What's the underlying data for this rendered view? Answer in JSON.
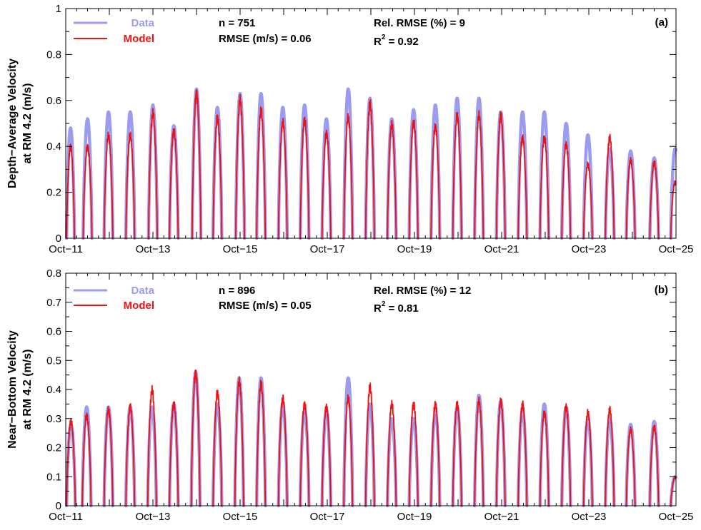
{
  "chart_data": [
    {
      "type": "line",
      "panel_label": "(a)",
      "ylabel_line1": "Depth−Average Velocity",
      "ylabel_line2": "at RM 4.2 (m/s)",
      "ylim": [
        0,
        1
      ],
      "yticks": [
        "0",
        "0.2",
        "0.4",
        "0.6",
        "0.8",
        "1"
      ],
      "xlim": [
        "Oct-11",
        "Oct-25"
      ],
      "xticks": [
        "Oct−11",
        "Oct−13",
        "Oct−15",
        "Oct−17",
        "Oct−19",
        "Oct−21",
        "Oct−23",
        "Oct−25"
      ],
      "stats": {
        "n": "n =  751",
        "rmse": "RMSE (m/s) = 0.06",
        "rel_rmse": "Rel. RMSE (%) = 9",
        "r2_prefix": "R",
        "r2_exp": "2",
        "r2_value": " =  0.92"
      },
      "legend": {
        "data_label": "Data",
        "model_label": "Model",
        "position": "top-left"
      },
      "series": [
        {
          "name": "Data",
          "color": "#9b9bf0",
          "pulses": [
            [
              0.4,
              0.02,
              0.48,
              0.18
            ],
            [
              1.5,
              0.4,
              0.52,
              0.2
            ],
            [
              2.0,
              0.88,
              0.55,
              0.2
            ],
            [
              2.5,
              1.38,
              0.55,
              0.2
            ],
            [
              3.0,
              1.9,
              0.58,
              0.2
            ],
            [
              3.5,
              2.38,
              0.49,
              0.2
            ],
            [
              4.0,
              2.9,
              0.65,
              0.2
            ],
            [
              4.5,
              3.38,
              0.57,
              0.2
            ],
            [
              5.0,
              3.9,
              0.63,
              0.2
            ],
            [
              5.5,
              4.38,
              0.63,
              0.2
            ],
            [
              6.0,
              4.88,
              0.57,
              0.2
            ],
            [
              6.5,
              5.38,
              0.58,
              0.2
            ],
            [
              7.0,
              5.88,
              0.52,
              0.2
            ],
            [
              7.5,
              6.38,
              0.65,
              0.2
            ],
            [
              8.0,
              6.88,
              0.61,
              0.2
            ],
            [
              8.5,
              7.38,
              0.52,
              0.2
            ],
            [
              9.0,
              7.88,
              0.56,
              0.2
            ],
            [
              9.5,
              8.38,
              0.58,
              0.2
            ],
            [
              10.0,
              8.88,
              0.61,
              0.2
            ],
            [
              10.5,
              9.38,
              0.61,
              0.2
            ],
            [
              11.0,
              9.88,
              0.55,
              0.2
            ],
            [
              11.5,
              10.38,
              0.55,
              0.2
            ],
            [
              12.0,
              10.88,
              0.55,
              0.2
            ],
            [
              12.5,
              11.38,
              0.5,
              0.2
            ],
            [
              13.0,
              11.88,
              0.45,
              0.2
            ],
            [
              13.5,
              12.38,
              0.39,
              0.2
            ],
            [
              14.0,
              12.86,
              0.38,
              0.2
            ],
            [
              14.5,
              13.4,
              0.35,
              0.2
            ],
            [
              15.0,
              13.88,
              0.39,
              0.2
            ]
          ]
        },
        {
          "name": "Model",
          "color": "#ee1111",
          "pulses": [
            [
              0.4,
              0.02,
              0.41,
              0.18
            ],
            [
              1.5,
              0.4,
              0.41,
              0.2
            ],
            [
              2.0,
              0.88,
              0.46,
              0.2
            ],
            [
              2.5,
              1.38,
              0.46,
              0.2
            ],
            [
              3.0,
              1.9,
              0.56,
              0.2
            ],
            [
              3.5,
              2.38,
              0.48,
              0.2
            ],
            [
              4.0,
              2.9,
              0.65,
              0.2
            ],
            [
              4.5,
              3.38,
              0.54,
              0.2
            ],
            [
              5.0,
              3.9,
              0.62,
              0.2
            ],
            [
              5.5,
              4.38,
              0.57,
              0.2
            ],
            [
              6.0,
              4.88,
              0.52,
              0.2
            ],
            [
              6.5,
              5.38,
              0.53,
              0.2
            ],
            [
              7.0,
              5.88,
              0.47,
              0.2
            ],
            [
              7.5,
              6.38,
              0.54,
              0.2
            ],
            [
              8.0,
              6.88,
              0.6,
              0.2
            ],
            [
              8.5,
              7.38,
              0.51,
              0.2
            ],
            [
              9.0,
              7.88,
              0.52,
              0.2
            ],
            [
              9.5,
              8.38,
              0.5,
              0.2
            ],
            [
              10.0,
              8.88,
              0.55,
              0.2
            ],
            [
              10.5,
              9.38,
              0.55,
              0.2
            ],
            [
              11.0,
              9.88,
              0.55,
              0.2
            ],
            [
              11.5,
              10.38,
              0.45,
              0.2
            ],
            [
              12.0,
              10.88,
              0.45,
              0.2
            ],
            [
              12.5,
              11.38,
              0.42,
              0.2
            ],
            [
              13.0,
              11.88,
              0.33,
              0.2
            ],
            [
              13.5,
              12.38,
              0.45,
              0.2
            ],
            [
              14.0,
              12.86,
              0.35,
              0.2
            ],
            [
              14.5,
              13.4,
              0.34,
              0.2
            ],
            [
              15.0,
              13.88,
              0.25,
              0.2
            ]
          ]
        }
      ]
    },
    {
      "type": "line",
      "panel_label": "(b)",
      "ylabel_line1": "Near−Bottom Velocity",
      "ylabel_line2": "at RM 4.2 (m/s)",
      "ylim": [
        0,
        0.8
      ],
      "yticks": [
        "0",
        "0.1",
        "0.2",
        "0.3",
        "0.4",
        "0.5",
        "0.6",
        "0.7",
        "0.8"
      ],
      "xlim": [
        "Oct-11",
        "Oct-25"
      ],
      "xticks": [
        "Oct−11",
        "Oct−13",
        "Oct−15",
        "Oct−17",
        "Oct−19",
        "Oct−21",
        "Oct−23",
        "Oct−25"
      ],
      "stats": {
        "n": "n =  896",
        "rmse": "RMSE (m/s) = 0.05",
        "rel_rmse": "Rel. RMSE (%) = 12",
        "r2_prefix": "R",
        "r2_exp": "2",
        "r2_value": " =  0.81"
      },
      "legend": {
        "data_label": "Data",
        "model_label": "Model",
        "position": "top-left"
      },
      "series": [
        {
          "name": "Data",
          "color": "#9b9bf0",
          "pulses": [
            [
              0.4,
              0.02,
              0.28,
              0.2
            ],
            [
              1.5,
              0.38,
              0.34,
              0.2
            ],
            [
              2.0,
              0.88,
              0.34,
              0.2
            ],
            [
              2.5,
              1.38,
              0.34,
              0.2
            ],
            [
              3.0,
              1.88,
              0.34,
              0.2
            ],
            [
              3.5,
              2.38,
              0.35,
              0.2
            ],
            [
              4.0,
              2.88,
              0.46,
              0.2
            ],
            [
              4.5,
              3.38,
              0.35,
              0.2
            ],
            [
              5.0,
              3.88,
              0.44,
              0.2
            ],
            [
              5.5,
              4.38,
              0.44,
              0.2
            ],
            [
              6.0,
              4.88,
              0.35,
              0.2
            ],
            [
              6.5,
              5.38,
              0.33,
              0.2
            ],
            [
              7.0,
              5.88,
              0.33,
              0.2
            ],
            [
              7.5,
              6.38,
              0.44,
              0.2
            ],
            [
              8.0,
              6.88,
              0.35,
              0.2
            ],
            [
              8.5,
              7.38,
              0.3,
              0.2
            ],
            [
              9.0,
              7.88,
              0.3,
              0.2
            ],
            [
              9.5,
              8.38,
              0.32,
              0.2
            ],
            [
              10.0,
              8.88,
              0.34,
              0.2
            ],
            [
              10.5,
              9.38,
              0.38,
              0.2
            ],
            [
              11.0,
              9.88,
              0.36,
              0.2
            ],
            [
              11.5,
              10.38,
              0.33,
              0.2
            ],
            [
              12.0,
              10.88,
              0.35,
              0.2
            ],
            [
              12.5,
              11.38,
              0.34,
              0.2
            ],
            [
              13.0,
              11.88,
              0.3,
              0.2
            ],
            [
              13.5,
              12.38,
              0.3,
              0.2
            ],
            [
              14.0,
              12.86,
              0.28,
              0.2
            ],
            [
              14.5,
              13.4,
              0.29,
              0.2
            ],
            [
              15.0,
              13.88,
              0.1,
              0.2
            ]
          ]
        },
        {
          "name": "Model",
          "color": "#ee1111",
          "pulses": [
            [
              0.4,
              0.02,
              0.3,
              0.2
            ],
            [
              1.5,
              0.38,
              0.32,
              0.2
            ],
            [
              2.0,
              0.88,
              0.34,
              0.2
            ],
            [
              2.5,
              1.38,
              0.35,
              0.2
            ],
            [
              3.0,
              1.88,
              0.41,
              0.2
            ],
            [
              3.5,
              2.38,
              0.36,
              0.2
            ],
            [
              4.0,
              2.88,
              0.47,
              0.2
            ],
            [
              4.5,
              3.38,
              0.4,
              0.2
            ],
            [
              5.0,
              3.88,
              0.44,
              0.2
            ],
            [
              5.5,
              4.38,
              0.43,
              0.2
            ],
            [
              6.0,
              4.88,
              0.38,
              0.2
            ],
            [
              6.5,
              5.38,
              0.36,
              0.2
            ],
            [
              7.0,
              5.88,
              0.35,
              0.2
            ],
            [
              7.5,
              6.38,
              0.38,
              0.2
            ],
            [
              8.0,
              6.88,
              0.42,
              0.2
            ],
            [
              8.5,
              7.38,
              0.36,
              0.2
            ],
            [
              9.0,
              7.88,
              0.36,
              0.2
            ],
            [
              9.5,
              8.38,
              0.36,
              0.2
            ],
            [
              10.0,
              8.88,
              0.36,
              0.2
            ],
            [
              10.5,
              9.38,
              0.37,
              0.2
            ],
            [
              11.0,
              9.88,
              0.37,
              0.2
            ],
            [
              11.5,
              10.38,
              0.36,
              0.2
            ],
            [
              12.0,
              10.88,
              0.33,
              0.2
            ],
            [
              12.5,
              11.38,
              0.35,
              0.2
            ],
            [
              13.0,
              11.88,
              0.33,
              0.2
            ],
            [
              13.5,
              12.38,
              0.34,
              0.2
            ],
            [
              14.0,
              12.86,
              0.27,
              0.2
            ],
            [
              14.5,
              13.4,
              0.28,
              0.2
            ],
            [
              15.0,
              13.88,
              0.1,
              0.2
            ]
          ]
        }
      ]
    }
  ]
}
